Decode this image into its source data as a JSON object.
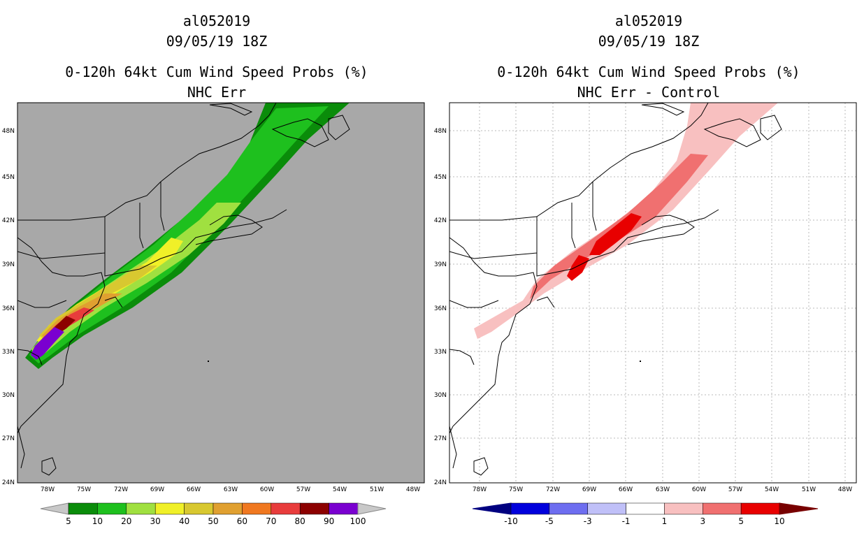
{
  "left": {
    "storm_id": "al052019",
    "datetime": "09/05/19 18Z",
    "product": "0-120h 64kt Cum Wind Speed Probs (%)",
    "subtitle": "NHC Err",
    "background": "#a8a8a8",
    "colorbar_labels": [
      "5",
      "10",
      "20",
      "30",
      "40",
      "50",
      "60",
      "70",
      "80",
      "90",
      "100"
    ],
    "colorbar_colors": [
      "#0a8c0a",
      "#1ec01e",
      "#a0e040",
      "#f0f028",
      "#d8c830",
      "#e0a030",
      "#f07820",
      "#e83c3c",
      "#8c0000",
      "#7a00d0"
    ]
  },
  "right": {
    "storm_id": "al052019",
    "datetime": "09/05/19 18Z",
    "product": "0-120h 64kt Cum Wind Speed Probs (%)",
    "subtitle": "NHC Err - Control",
    "background": "#ffffff",
    "colorbar_labels": [
      "-10",
      "-5",
      "-3",
      "-1",
      "1",
      "3",
      "5",
      "10"
    ],
    "colorbar_colors": [
      "#0000dc",
      "#6e6ef0",
      "#c0c0f8",
      "#ffffff",
      "#f8c0c0",
      "#f07070",
      "#e80000"
    ]
  },
  "lat_labels": [
    "48N",
    "45N",
    "42N",
    "39N",
    "36N",
    "33N",
    "30N",
    "27N",
    "24N"
  ],
  "lon_labels": [
    "78W",
    "75W",
    "72W",
    "69W",
    "66W",
    "63W",
    "60W",
    "57W",
    "54W",
    "51W",
    "48W"
  ]
}
